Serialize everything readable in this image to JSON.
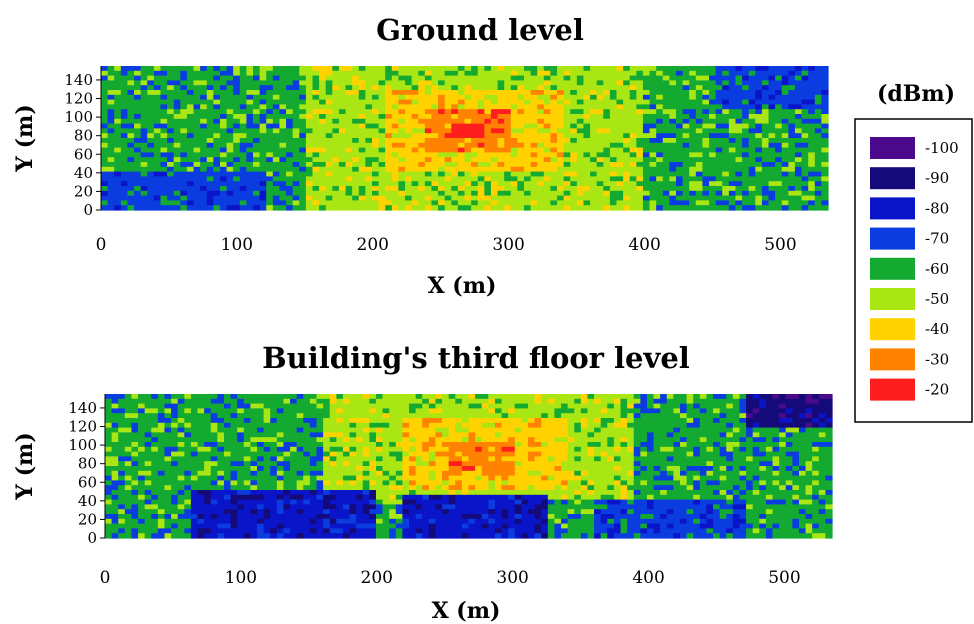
{
  "chart_data": [
    {
      "type": "heatmap",
      "title": "Ground level",
      "xlabel": "X (m)",
      "ylabel": "Y (m)",
      "xlim": [
        0,
        535
      ],
      "ylim": [
        0,
        155
      ],
      "x_ticks": [
        0,
        100,
        200,
        300,
        400,
        500
      ],
      "y_ticks": [
        0,
        20,
        40,
        60,
        80,
        100,
        120,
        140
      ],
      "peak": {
        "x": 270,
        "y": 85,
        "value": -20
      },
      "regions": [
        {
          "x_range": [
            0,
            535
          ],
          "y_range": [
            0,
            155
          ],
          "value": -60
        },
        {
          "x_range": [
            0,
            120
          ],
          "y_range": [
            0,
            40
          ],
          "value": -70
        },
        {
          "x_range": [
            450,
            535
          ],
          "y_range": [
            110,
            155
          ],
          "value": -70
        },
        {
          "x_range": [
            150,
            400
          ],
          "y_range": [
            0,
            155
          ],
          "value": -50
        },
        {
          "x_range": [
            210,
            340
          ],
          "y_range": [
            40,
            130
          ],
          "value": -40
        },
        {
          "x_range": [
            240,
            300
          ],
          "y_range": [
            60,
            110
          ],
          "value": -30
        },
        {
          "x_range": [
            260,
            280
          ],
          "y_range": [
            78,
            92
          ],
          "value": -20
        }
      ]
    },
    {
      "type": "heatmap",
      "title": "Building's third floor level",
      "xlabel": "X (m)",
      "ylabel": "Y (m)",
      "xlim": [
        0,
        535
      ],
      "ylim": [
        0,
        155
      ],
      "x_ticks": [
        0,
        100,
        200,
        300,
        400,
        500
      ],
      "y_ticks": [
        0,
        20,
        40,
        60,
        80,
        100,
        120,
        140
      ],
      "peak": {
        "x": 275,
        "y": 85,
        "value": -30
      },
      "regions": [
        {
          "x_range": [
            0,
            535
          ],
          "y_range": [
            0,
            155
          ],
          "value": -60
        },
        {
          "x_range": [
            160,
            390
          ],
          "y_range": [
            40,
            155
          ],
          "value": -50
        },
        {
          "x_range": [
            220,
            340
          ],
          "y_range": [
            50,
            130
          ],
          "value": -40
        },
        {
          "x_range": [
            250,
            300
          ],
          "y_range": [
            65,
            105
          ],
          "value": -30
        },
        {
          "x_range": [
            65,
            200
          ],
          "y_range": [
            0,
            50
          ],
          "value": -80
        },
        {
          "x_range": [
            220,
            325
          ],
          "y_range": [
            0,
            45
          ],
          "value": -80
        },
        {
          "x_range": [
            470,
            535
          ],
          "y_range": [
            120,
            155
          ],
          "value": -90
        },
        {
          "x_range": [
            360,
            470
          ],
          "y_range": [
            0,
            40
          ],
          "value": -70
        }
      ]
    }
  ],
  "legend": {
    "title": "(dBm)",
    "placement": "right",
    "items": [
      {
        "label": "-100",
        "color": "#4b0a8c"
      },
      {
        "label": "-90",
        "color": "#140a7a"
      },
      {
        "label": "-80",
        "color": "#0a14c8"
      },
      {
        "label": "-70",
        "color": "#0a3ce0"
      },
      {
        "label": "-60",
        "color": "#14aa32"
      },
      {
        "label": "-50",
        "color": "#aae614"
      },
      {
        "label": "-40",
        "color": "#ffd200"
      },
      {
        "label": "-30",
        "color": "#ff8200"
      },
      {
        "label": "-20",
        "color": "#ff1e1e"
      }
    ]
  }
}
